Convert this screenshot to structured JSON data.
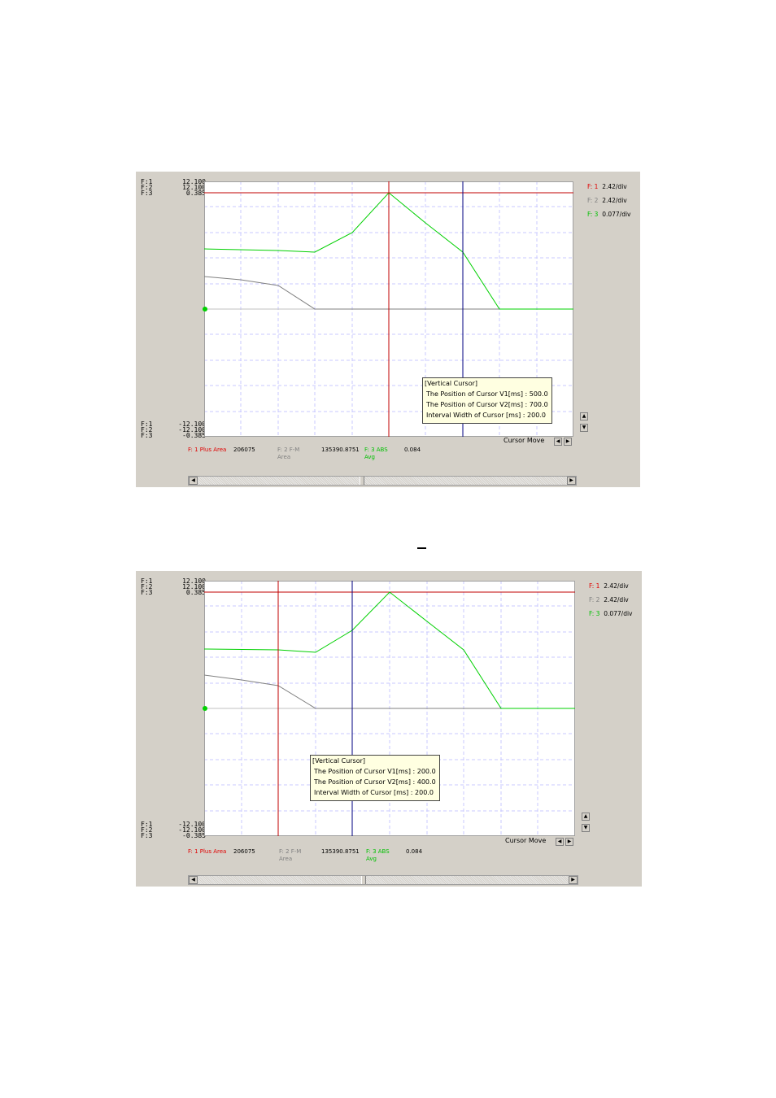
{
  "panels": [
    {
      "scale_top": [
        {
          "ch": "F:1",
          "val": "12.100"
        },
        {
          "ch": "F:2",
          "val": "12.100"
        },
        {
          "ch": "F:3",
          "val": "0.385"
        }
      ],
      "scale_bottom": [
        {
          "ch": "F:1",
          "val": "-12.100"
        },
        {
          "ch": "F:2",
          "val": "-12.100"
        },
        {
          "ch": "F:3",
          "val": "-0.385"
        }
      ],
      "divs": [
        {
          "ch": "F: 1",
          "val": "2.42/div",
          "color": "#e00000"
        },
        {
          "ch": "F: 2",
          "val": "2.42/div",
          "color": "#808080"
        },
        {
          "ch": "F: 3",
          "val": "0.077/div",
          "color": "#00c000"
        }
      ],
      "tooltip": {
        "title": "[Vertical Cursor]",
        "v1": "The Position of Cursor V1[ms]  : 500.0",
        "v2": "The Position of Cursor V2[ms]  : 700.0",
        "interval": "Interval Width of Cursor [ms] : 200.0"
      },
      "stats": {
        "f1_label": "F: 1 Plus Area",
        "f1_value": "206075",
        "f2_label": "F: 2 F-M",
        "f2_sub": "Area",
        "f2_value": "135390.8751",
        "f3_label": "F: 3 ABS",
        "f3_sub": "Avg",
        "f3_value": "0.084"
      },
      "cursor_move": "Cursor Move",
      "cursor_v1_ms": 500,
      "cursor_v2_ms": 700
    },
    {
      "scale_top": [
        {
          "ch": "F:1",
          "val": "12.100"
        },
        {
          "ch": "F:2",
          "val": "12.100"
        },
        {
          "ch": "F:3",
          "val": "0.385"
        }
      ],
      "scale_bottom": [
        {
          "ch": "F:1",
          "val": "-12.100"
        },
        {
          "ch": "F:2",
          "val": "-12.100"
        },
        {
          "ch": "F:3",
          "val": "-0.385"
        }
      ],
      "divs": [
        {
          "ch": "F: 1",
          "val": "2.42/div",
          "color": "#e00000"
        },
        {
          "ch": "F: 2",
          "val": "2.42/div",
          "color": "#808080"
        },
        {
          "ch": "F: 3",
          "val": "0.077/div",
          "color": "#00c000"
        }
      ],
      "tooltip": {
        "title": "[Vertical Cursor]",
        "v1": "The Position of Cursor V1[ms]  : 200.0",
        "v2": "The Position of Cursor V2[ms]  : 400.0",
        "interval": "Interval Width of Cursor [ms] : 200.0"
      },
      "stats": {
        "f1_label": "F: 1 Plus Area",
        "f1_value": "206075",
        "f2_label": "F: 2 F-M",
        "f2_sub": "Area",
        "f2_value": "135390.8751",
        "f3_label": "F: 3 ABS",
        "f3_sub": "Avg",
        "f3_value": "0.084"
      },
      "cursor_move": "Cursor Move",
      "cursor_v1_ms": 200,
      "cursor_v2_ms": 400
    }
  ],
  "colors": {
    "f1": "#e00000",
    "f2": "#808080",
    "f3": "#00c000",
    "cursor_v1": "#c00000",
    "cursor_v2": "#000080",
    "grid": "#c8c8ff",
    "panel_bg": "#d4d0c8",
    "tooltip_bg": "#ffffe1"
  }
}
